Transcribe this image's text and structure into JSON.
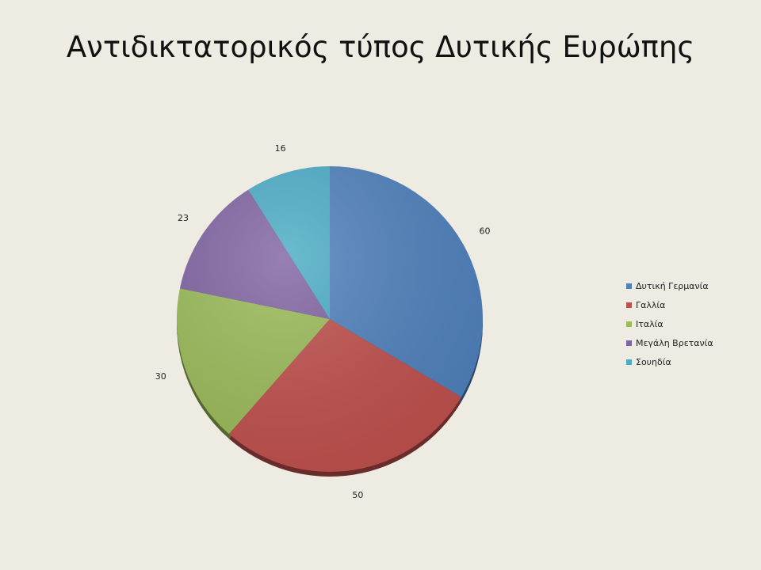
{
  "slide": {
    "title": "Αντιδικτατορικός τύπος Δυτικής Ευρώπης"
  },
  "chart_data": {
    "type": "pie",
    "title": "",
    "categories": [
      "Δυτική Γερμανία",
      "Γαλλία",
      "Ιταλία",
      "Μεγάλη Βρετανία",
      "Σουηδία"
    ],
    "values": [
      60,
      50,
      30,
      23,
      16
    ],
    "colors": [
      "#4f81bd",
      "#c0504d",
      "#9bbb59",
      "#8064a2",
      "#4bacc6"
    ],
    "start_angle": "12 o'clock, clockwise",
    "legend": "right",
    "data_labels": true
  }
}
